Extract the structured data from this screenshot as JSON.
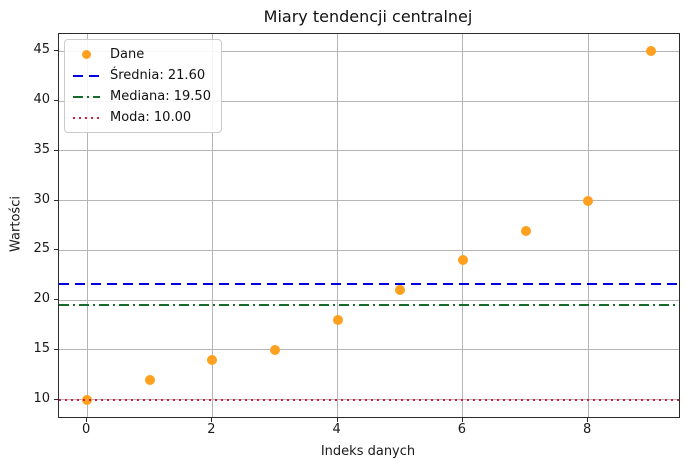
{
  "figure": {
    "title": "Miary tendencji centralnej",
    "xlabel": "Indeks danych",
    "ylabel": "Wartości"
  },
  "legend": {
    "items": [
      {
        "label": "Dane",
        "type": "marker",
        "color": "#ffa01e"
      },
      {
        "label": "Średnia: 21.60",
        "type": "dashed",
        "color": "#0000dd"
      },
      {
        "label": "Mediana: 19.50",
        "type": "dashdot",
        "color": "#186a2c"
      },
      {
        "label": "Moda: 10.00",
        "type": "dotted",
        "color": "#d41f3c"
      }
    ]
  },
  "chart_data": {
    "type": "scatter",
    "title": "Miary tendencji centralnej",
    "xlabel": "Indeks danych",
    "ylabel": "Wartości",
    "series_label": "Dane",
    "x": [
      0,
      1,
      2,
      3,
      4,
      5,
      6,
      7,
      8,
      9
    ],
    "y": [
      10,
      12,
      14,
      15,
      18,
      21,
      24,
      27,
      30,
      45
    ],
    "marker_color": "#ffa01e",
    "hlines": [
      {
        "name": "mean",
        "label": "Średnia: 21.60",
        "value": 21.6,
        "style": "dashed",
        "color": "#0000dd"
      },
      {
        "name": "median",
        "label": "Mediana: 19.50",
        "value": 19.5,
        "style": "dashdot",
        "color": "#186a2c"
      },
      {
        "name": "mode",
        "label": "Moda: 10.00",
        "value": 10.0,
        "style": "dotted",
        "color": "#d41f3c"
      }
    ],
    "xlim": [
      -0.45,
      9.45
    ],
    "ylim": [
      8.25,
      46.75
    ],
    "xticks": [
      0,
      2,
      4,
      6,
      8
    ],
    "yticks": [
      10,
      15,
      20,
      25,
      30,
      35,
      40,
      45
    ],
    "grid": true,
    "grid_color": "#b5b5b5",
    "legend_position": "upper left"
  }
}
